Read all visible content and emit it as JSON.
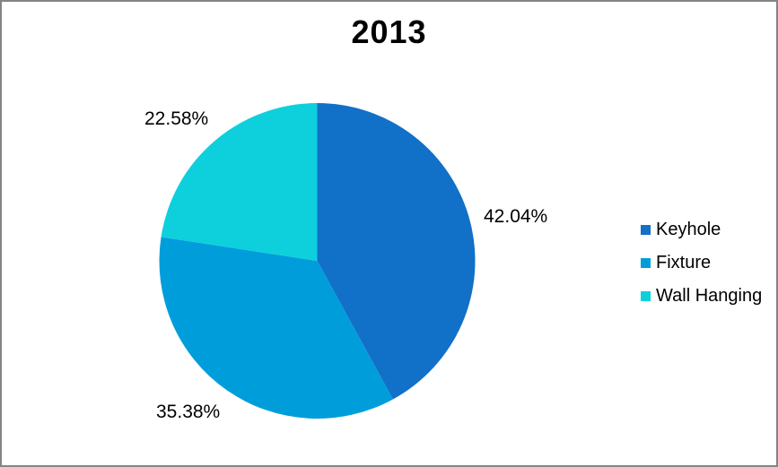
{
  "chart_data": {
    "type": "pie",
    "title": "2013",
    "series": [
      {
        "name": "Keyhole",
        "value": 42.04,
        "label": "42.04%",
        "color": "#1170C7"
      },
      {
        "name": "Fixture",
        "value": 35.38,
        "label": "35.38%",
        "color": "#009DDB"
      },
      {
        "name": "Wall Hanging",
        "value": 22.58,
        "label": "22.58%",
        "color": "#0DD0DC"
      }
    ],
    "start_angle_deg": 0,
    "direction": "clockwise",
    "legend_position": "right",
    "data_label_style": "outside-end percent",
    "background_color": "#FFFFFF",
    "frame_border_color": "#848484",
    "title_color": "#000000",
    "label_color": "#000000"
  }
}
